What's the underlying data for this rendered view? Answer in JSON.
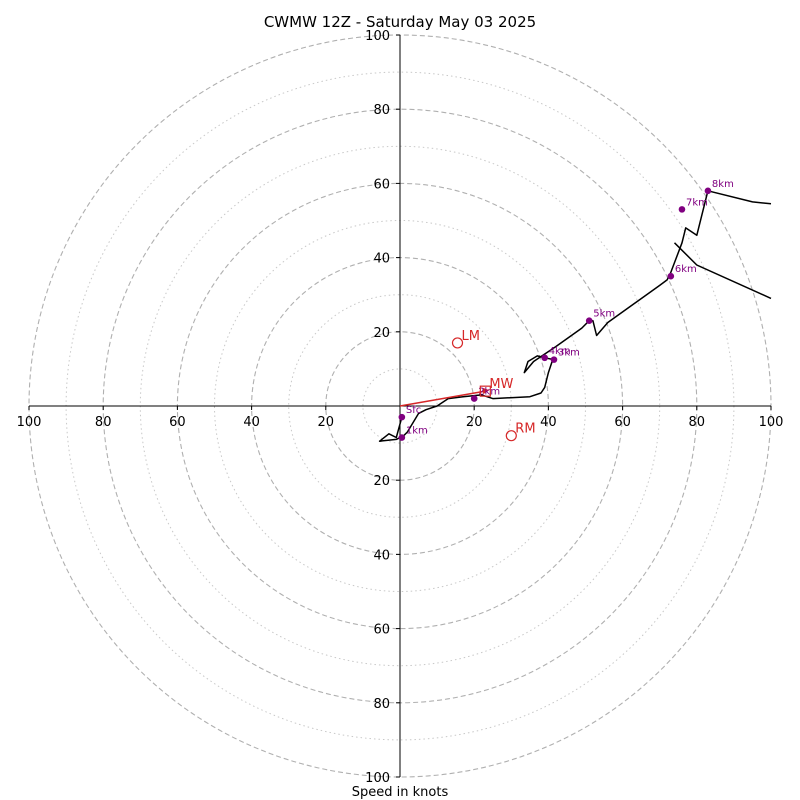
{
  "chart_data": {
    "type": "line",
    "title": "CWMW 12Z - Saturday May 03 2025",
    "xlabel": "Speed in knots",
    "ylabel": "",
    "xlim": [
      -100,
      100
    ],
    "ylim": [
      -100,
      100
    ],
    "ring_major": [
      20,
      40,
      60,
      80,
      100
    ],
    "ring_minor": [
      10,
      30,
      50,
      70,
      90
    ],
    "x_tick_labels": [
      "100",
      "80",
      "60",
      "40",
      "20",
      "20",
      "40",
      "60",
      "80",
      "100"
    ],
    "y_tick_labels": [
      "100",
      "80",
      "60",
      "40",
      "20",
      "20",
      "40",
      "60",
      "80",
      "100"
    ],
    "x_tick_values": [
      -100,
      -80,
      -60,
      -40,
      -20,
      20,
      40,
      60,
      80,
      100
    ],
    "y_tick_values": [
      100,
      80,
      60,
      40,
      20,
      -20,
      -40,
      -60,
      -80,
      -100
    ],
    "hodograph": [
      [
        0.5,
        -3
      ],
      [
        -1,
        -8.5
      ],
      [
        -3,
        -7.5
      ],
      [
        -5.5,
        -9.5
      ],
      [
        -1,
        -9
      ],
      [
        1,
        -8
      ],
      [
        2,
        -7
      ],
      [
        5,
        -2
      ],
      [
        7,
        -1
      ],
      [
        10,
        0
      ],
      [
        13,
        2
      ],
      [
        17,
        2.5
      ],
      [
        22,
        3
      ],
      [
        25,
        2
      ],
      [
        35,
        2.5
      ],
      [
        38,
        3.5
      ],
      [
        39,
        5
      ],
      [
        40,
        9
      ],
      [
        41,
        12
      ],
      [
        41.5,
        12.5
      ],
      [
        39,
        13
      ],
      [
        37,
        13.5
      ],
      [
        34.5,
        12
      ],
      [
        33.5,
        9
      ],
      [
        36,
        12
      ],
      [
        42,
        16
      ],
      [
        49,
        21
      ],
      [
        51,
        23
      ],
      [
        52,
        23
      ],
      [
        53,
        19
      ],
      [
        56,
        22.5
      ],
      [
        70,
        32.5
      ],
      [
        72,
        34
      ],
      [
        73,
        36
      ],
      [
        76,
        44
      ],
      [
        77,
        48
      ],
      [
        80,
        46
      ],
      [
        83,
        58
      ],
      [
        95,
        55
      ],
      [
        100,
        54.5
      ]
    ],
    "hodograph_tail": [
      [
        74,
        44
      ],
      [
        80,
        38
      ],
      [
        100,
        29
      ]
    ],
    "height_markers": [
      {
        "label": "Sfc",
        "x": 0.5,
        "y": -3
      },
      {
        "label": "1km",
        "x": 0.5,
        "y": -8.5
      },
      {
        "label": "2km",
        "x": 20,
        "y": 2
      },
      {
        "label": "3km",
        "x": 41.5,
        "y": 12.5
      },
      {
        "label": "4km",
        "x": 39,
        "y": 13
      },
      {
        "label": "5km",
        "x": 51,
        "y": 23
      },
      {
        "label": "6km",
        "x": 73,
        "y": 35
      },
      {
        "label": "7km",
        "x": 76,
        "y": 53
      },
      {
        "label": "8km",
        "x": 83,
        "y": 58
      }
    ],
    "motion_markers": [
      {
        "label": "LM",
        "x": 15.5,
        "y": 17,
        "shape": "circle"
      },
      {
        "label": "MW",
        "x": 23,
        "y": 4,
        "shape": "square"
      },
      {
        "label": "RM",
        "x": 30,
        "y": -8,
        "shape": "circle"
      }
    ],
    "mean_wind_vector": {
      "from": [
        0,
        0
      ],
      "to": [
        23,
        4
      ]
    },
    "colors": {
      "hodograph": "#000000",
      "height_marker": "#800080",
      "motion": "#d62728",
      "grid": "#b0b0b0",
      "axis": "#000000"
    }
  }
}
